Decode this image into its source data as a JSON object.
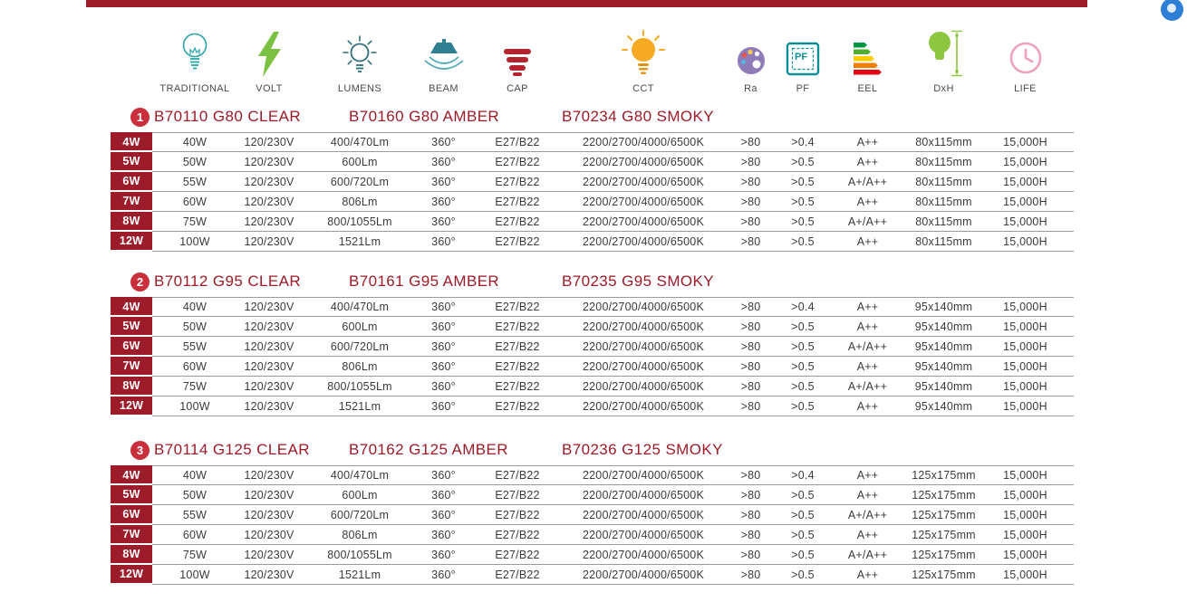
{
  "colors": {
    "accent_red": "#9d1c2a",
    "badge_red": "#c9303c"
  },
  "icons": {
    "pf_text": "PF"
  },
  "columns": [
    {
      "key": "traditional",
      "label": "TRADITIONAL"
    },
    {
      "key": "volt",
      "label": "VOLT"
    },
    {
      "key": "lumens",
      "label": "LUMENS"
    },
    {
      "key": "beam",
      "label": "BEAM"
    },
    {
      "key": "cap",
      "label": "CAP"
    },
    {
      "key": "cct",
      "label": "CCT"
    },
    {
      "key": "ra",
      "label": "Ra"
    },
    {
      "key": "pf",
      "label": "PF"
    },
    {
      "key": "eel",
      "label": "EEL"
    },
    {
      "key": "dxh",
      "label": "DxH"
    },
    {
      "key": "life",
      "label": "LIFE"
    }
  ],
  "sections": [
    {
      "number": "1",
      "titles": [
        "B70110 G80 CLEAR",
        "B70160 G80 AMBER",
        "B70234 G80 SMOKY"
      ],
      "rows": [
        [
          "4W",
          "40W",
          "120/230V",
          "400/470Lm",
          "360°",
          "E27/B22",
          "2200/2700/4000/6500K",
          ">80",
          ">0.4",
          "A++",
          "80x115mm",
          "15,000H"
        ],
        [
          "5W",
          "50W",
          "120/230V",
          "600Lm",
          "360°",
          "E27/B22",
          "2200/2700/4000/6500K",
          ">80",
          ">0.5",
          "A++",
          "80x115mm",
          "15,000H"
        ],
        [
          "6W",
          "55W",
          "120/230V",
          "600/720Lm",
          "360°",
          "E27/B22",
          "2200/2700/4000/6500K",
          ">80",
          ">0.5",
          "A+/A++",
          "80x115mm",
          "15,000H"
        ],
        [
          "7W",
          "60W",
          "120/230V",
          "806Lm",
          "360°",
          "E27/B22",
          "2200/2700/4000/6500K",
          ">80",
          ">0.5",
          "A++",
          "80x115mm",
          "15,000H"
        ],
        [
          "8W",
          "75W",
          "120/230V",
          "800/1055Lm",
          "360°",
          "E27/B22",
          "2200/2700/4000/6500K",
          ">80",
          ">0.5",
          "A+/A++",
          "80x115mm",
          "15,000H"
        ],
        [
          "12W",
          "100W",
          "120/230V",
          "1521Lm",
          "360°",
          "E27/B22",
          "2200/2700/4000/6500K",
          ">80",
          ">0.5",
          "A++",
          "80x115mm",
          "15,000H"
        ]
      ]
    },
    {
      "number": "2",
      "titles": [
        "B70112 G95 CLEAR",
        "B70161 G95 AMBER",
        "B70235 G95 SMOKY"
      ],
      "rows": [
        [
          "4W",
          "40W",
          "120/230V",
          "400/470Lm",
          "360°",
          "E27/B22",
          "2200/2700/4000/6500K",
          ">80",
          ">0.4",
          "A++",
          "95x140mm",
          "15,000H"
        ],
        [
          "5W",
          "50W",
          "120/230V",
          "600Lm",
          "360°",
          "E27/B22",
          "2200/2700/4000/6500K",
          ">80",
          ">0.5",
          "A++",
          "95x140mm",
          "15,000H"
        ],
        [
          "6W",
          "55W",
          "120/230V",
          "600/720Lm",
          "360°",
          "E27/B22",
          "2200/2700/4000/6500K",
          ">80",
          ">0.5",
          "A+/A++",
          "95x140mm",
          "15,000H"
        ],
        [
          "7W",
          "60W",
          "120/230V",
          "806Lm",
          "360°",
          "E27/B22",
          "2200/2700/4000/6500K",
          ">80",
          ">0.5",
          "A++",
          "95x140mm",
          "15,000H"
        ],
        [
          "8W",
          "75W",
          "120/230V",
          "800/1055Lm",
          "360°",
          "E27/B22",
          "2200/2700/4000/6500K",
          ">80",
          ">0.5",
          "A+/A++",
          "95x140mm",
          "15,000H"
        ],
        [
          "12W",
          "100W",
          "120/230V",
          "1521Lm",
          "360°",
          "E27/B22",
          "2200/2700/4000/6500K",
          ">80",
          ">0.5",
          "A++",
          "95x140mm",
          "15,000H"
        ]
      ]
    },
    {
      "number": "3",
      "titles": [
        "B70114 G125 CLEAR",
        "B70162 G125 AMBER",
        "B70236 G125 SMOKY"
      ],
      "rows": [
        [
          "4W",
          "40W",
          "120/230V",
          "400/470Lm",
          "360°",
          "E27/B22",
          "2200/2700/4000/6500K",
          ">80",
          ">0.4",
          "A++",
          "125x175mm",
          "15,000H"
        ],
        [
          "5W",
          "50W",
          "120/230V",
          "600Lm",
          "360°",
          "E27/B22",
          "2200/2700/4000/6500K",
          ">80",
          ">0.5",
          "A++",
          "125x175mm",
          "15,000H"
        ],
        [
          "6W",
          "55W",
          "120/230V",
          "600/720Lm",
          "360°",
          "E27/B22",
          "2200/2700/4000/6500K",
          ">80",
          ">0.5",
          "A+/A++",
          "125x175mm",
          "15,000H"
        ],
        [
          "7W",
          "60W",
          "120/230V",
          "806Lm",
          "360°",
          "E27/B22",
          "2200/2700/4000/6500K",
          ">80",
          ">0.5",
          "A++",
          "125x175mm",
          "15,000H"
        ],
        [
          "8W",
          "75W",
          "120/230V",
          "800/1055Lm",
          "360°",
          "E27/B22",
          "2200/2700/4000/6500K",
          ">80",
          ">0.5",
          "A+/A++",
          "125x175mm",
          "15,000H"
        ],
        [
          "12W",
          "100W",
          "120/230V",
          "1521Lm",
          "360°",
          "E27/B22",
          "2200/2700/4000/6500K",
          ">80",
          ">0.5",
          "A++",
          "125x175mm",
          "15,000H"
        ]
      ]
    }
  ]
}
